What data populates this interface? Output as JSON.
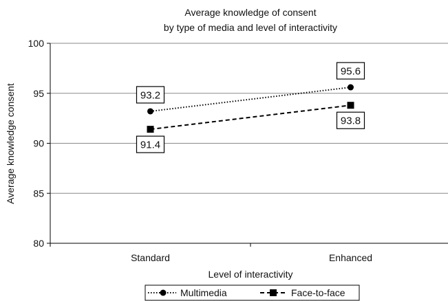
{
  "chart_data": {
    "type": "line",
    "title": "Average knowledge of consent",
    "subtitle": "by type of media and level of interactivity",
    "xlabel": "Level of interactivity",
    "ylabel": "Average knowledge consent",
    "categories": [
      "Standard",
      "Enhanced"
    ],
    "ylim": [
      80,
      100
    ],
    "yticks": [
      80,
      85,
      90,
      95,
      100
    ],
    "grid": true,
    "legend_position": "bottom",
    "series": [
      {
        "name": "Multimedia",
        "values": [
          93.2,
          95.6
        ],
        "labels": [
          "93.2",
          "95.6"
        ],
        "line_style": "dotted",
        "marker": "circle",
        "color": "#000000"
      },
      {
        "name": "Face-to-face",
        "values": [
          91.4,
          93.8
        ],
        "labels": [
          "91.4",
          "93.8"
        ],
        "line_style": "dashed",
        "marker": "square",
        "color": "#000000"
      }
    ]
  }
}
